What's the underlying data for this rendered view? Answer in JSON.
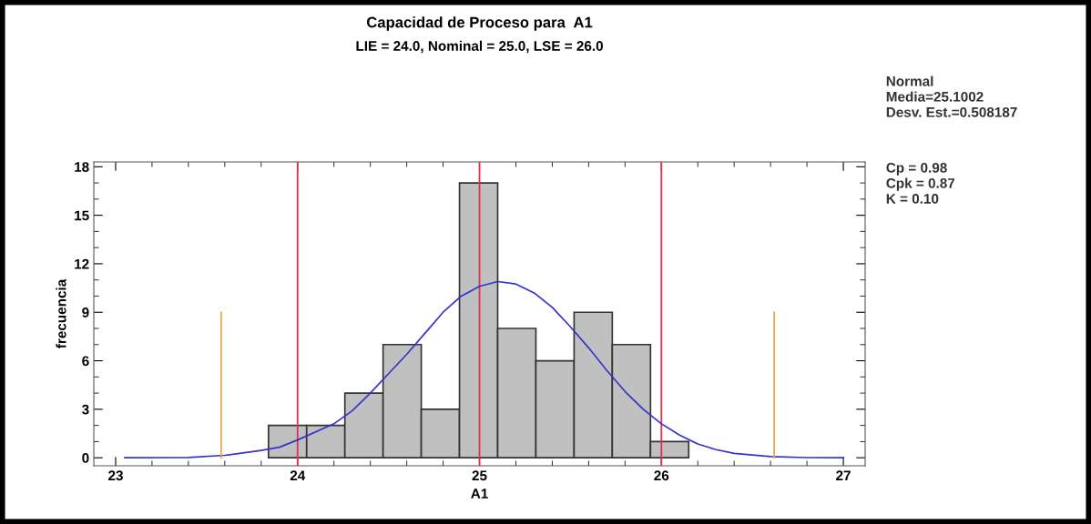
{
  "chart_data": {
    "type": "histogram",
    "title": "Capacidad de Proceso para  A1",
    "subtitle": "LIE = 24.0, Nominal = 25.0, LSE = 26.0",
    "xlabel": "A1",
    "ylabel": "frecuencia",
    "bins": [
      23.84,
      24.05,
      24.26,
      24.47,
      24.68,
      24.89,
      25.1,
      25.31,
      25.52,
      25.73,
      25.94,
      26.15
    ],
    "values": [
      2,
      2,
      4,
      7,
      3,
      17,
      8,
      6,
      9,
      7,
      1
    ],
    "color": "#c0c0c0",
    "series": [
      {
        "type": "line",
        "color": "#3333cc",
        "x": [
          23.05,
          23.4,
          23.6,
          23.8,
          23.9,
          24.0,
          24.2,
          24.3,
          24.4,
          24.5,
          24.6,
          24.7,
          24.8,
          24.9,
          25.0,
          25.1,
          25.2,
          25.3,
          25.4,
          25.5,
          25.6,
          25.7,
          25.8,
          25.9,
          26.0,
          26.1,
          26.2,
          26.3,
          26.4,
          26.6,
          26.8,
          27.0
        ],
        "values": [
          0,
          0.02,
          0.15,
          0.45,
          0.65,
          1.1,
          2.1,
          2.9,
          4.0,
          5.2,
          6.4,
          7.7,
          9.0,
          10.0,
          10.6,
          10.9,
          10.75,
          10.2,
          9.3,
          8.1,
          6.8,
          5.4,
          4.1,
          3.0,
          2.1,
          1.4,
          0.85,
          0.5,
          0.27,
          0.07,
          0.01,
          0
        ]
      },
      {
        "type": "line",
        "color": "#f0a040",
        "x": [
          23.58,
          23.58
        ],
        "values": [
          0,
          9
        ]
      },
      {
        "type": "line",
        "color": "#f0a040",
        "x": [
          26.62,
          26.62
        ],
        "values": [
          0,
          9
        ]
      }
    ],
    "ref_lines": [
      {
        "axis": "x",
        "value": 24,
        "label": null,
        "color": "#e03050"
      },
      {
        "axis": "x",
        "value": 25,
        "label": null,
        "color": "#e03050"
      },
      {
        "axis": "x",
        "value": 26,
        "label": null,
        "color": "#e03050"
      }
    ],
    "xlim": [
      22.88,
      27.12
    ],
    "xticks": [
      23,
      24,
      25,
      26,
      27
    ],
    "ylim": [
      -0.5,
      18.3
    ],
    "yticks": [
      0,
      3,
      6,
      9,
      12,
      15,
      18
    ],
    "grid": false,
    "legend": false,
    "marker": "none",
    "line_style": "solid",
    "annotations": [
      "Normal\nMedia=25.1002\nDesv. Est.=0.508187",
      "Cp = 0.98\nCpk = 0.87\nK = 0.10"
    ]
  }
}
